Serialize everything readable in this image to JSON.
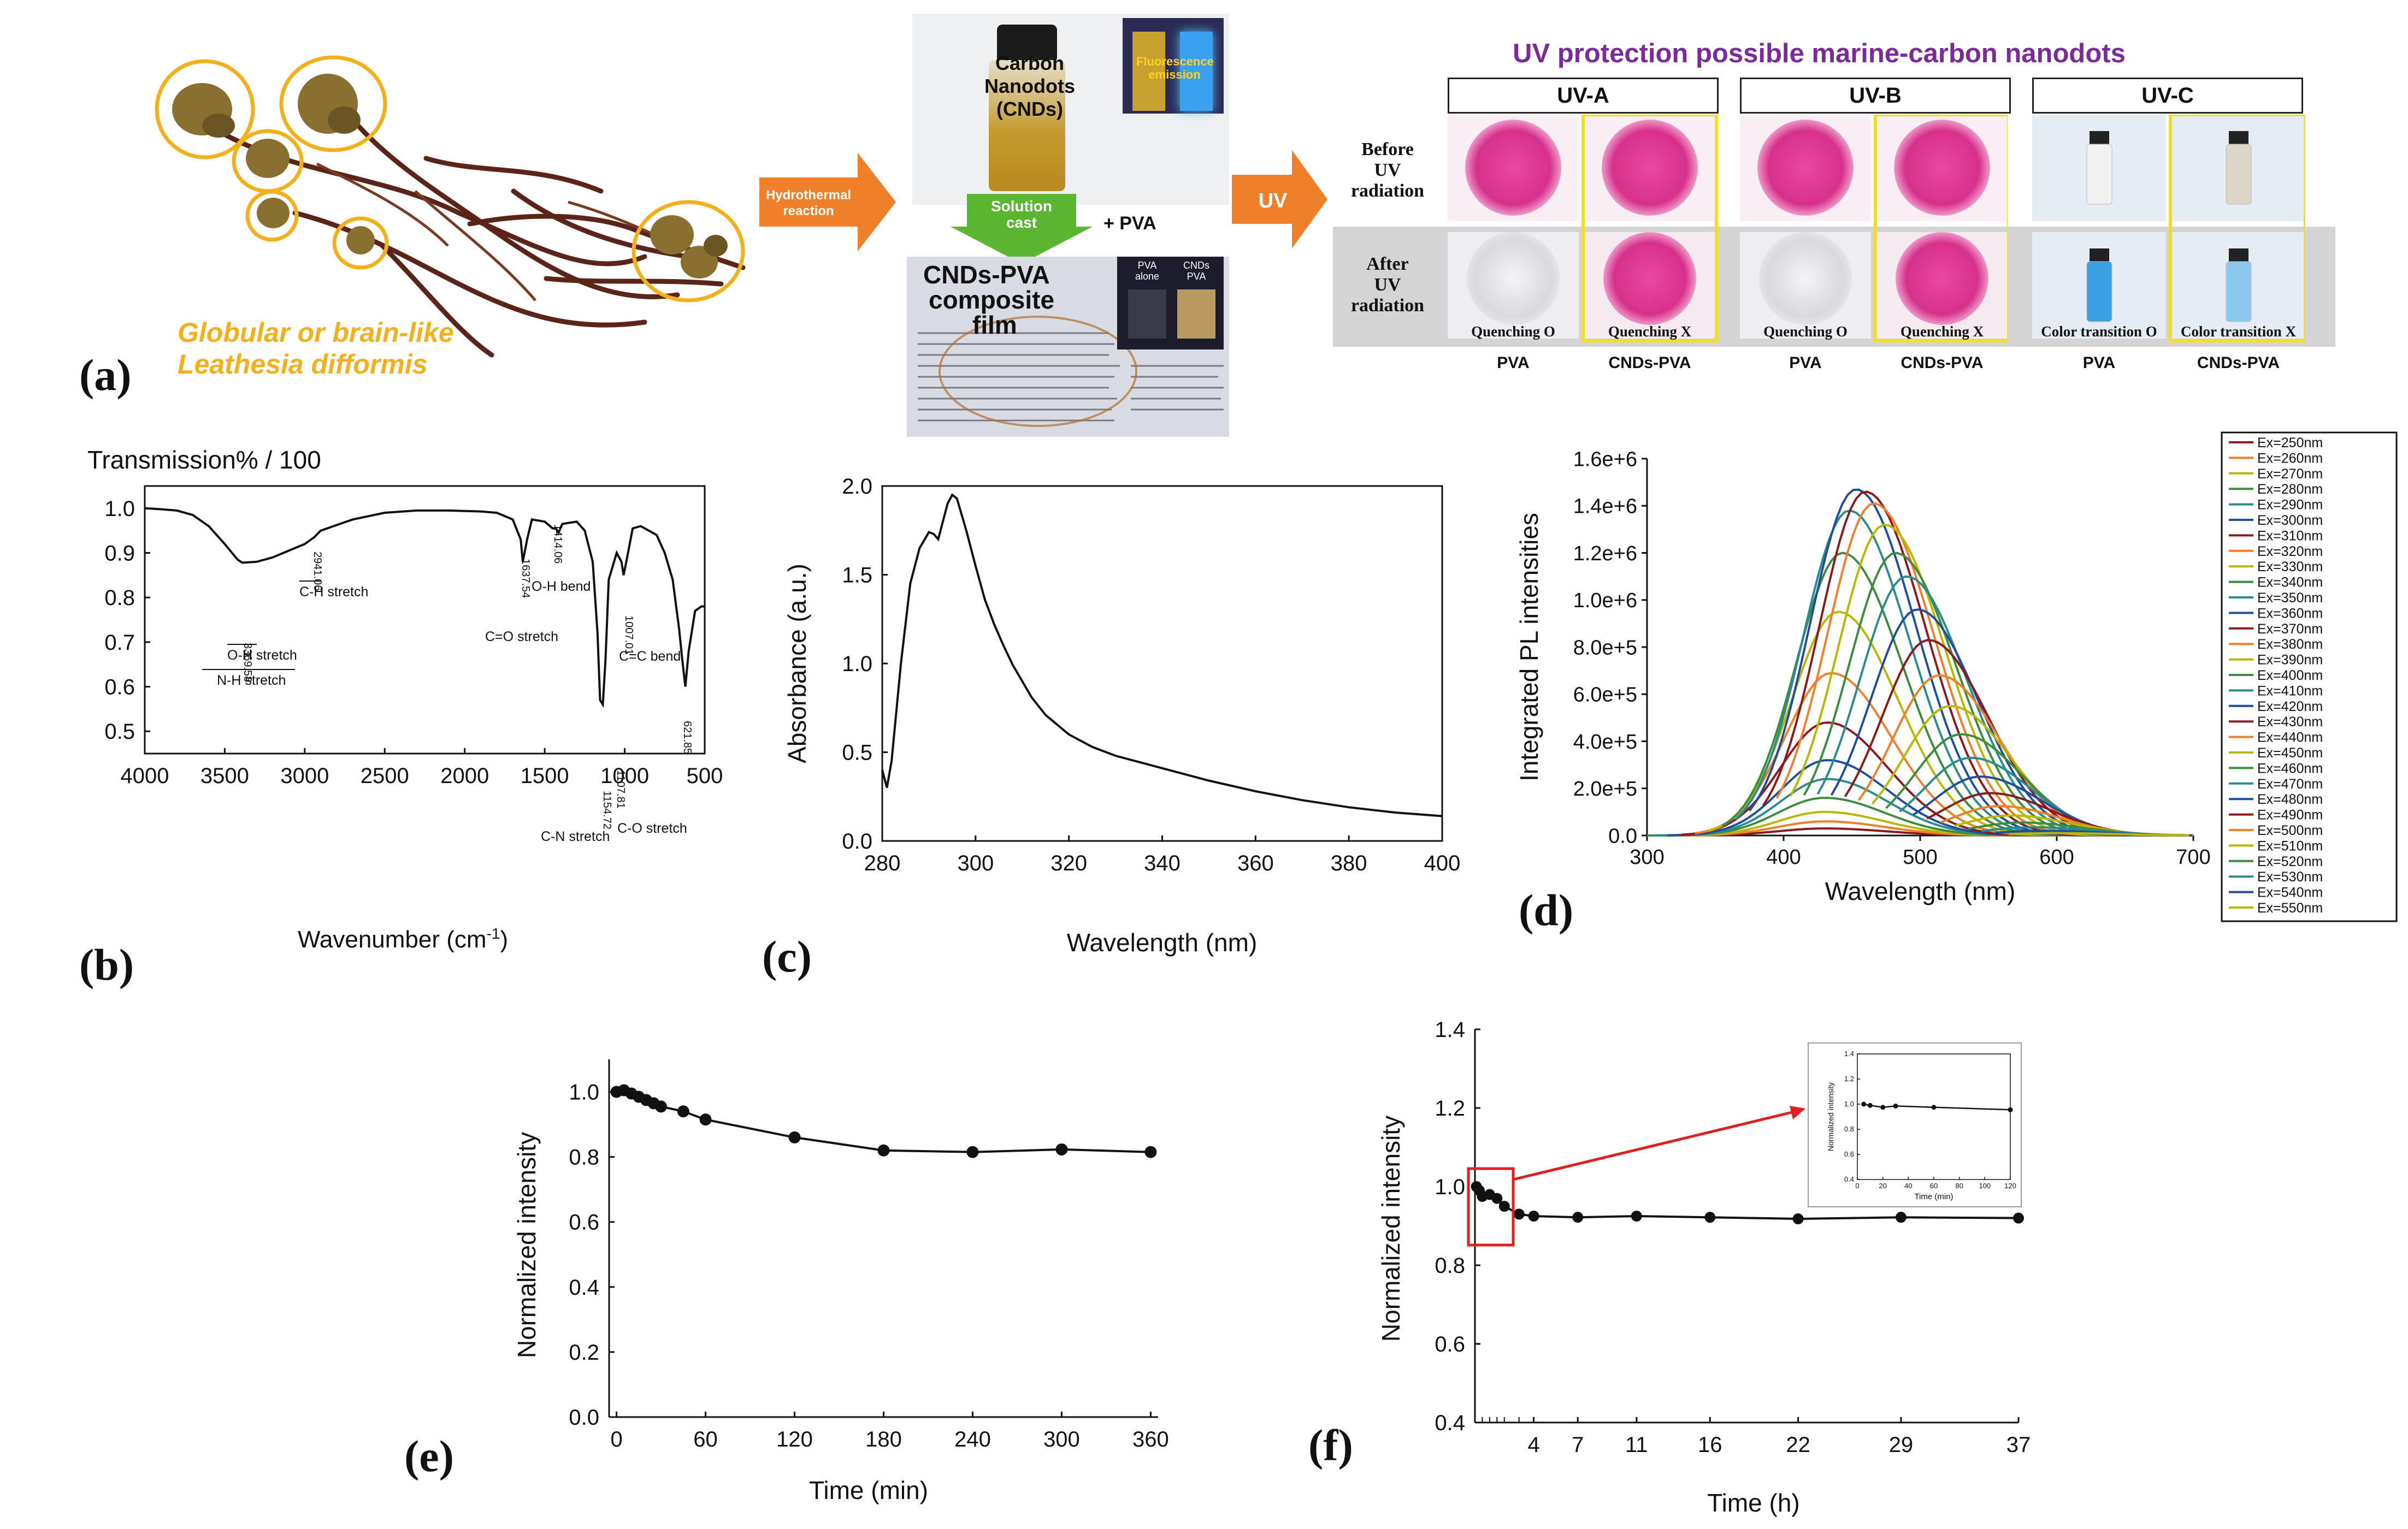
{
  "panel_a": {
    "letter": "(a)",
    "species_caption": [
      "Globular or brain-like",
      "Leathesia difformis"
    ],
    "arrow1": [
      "Hydrothermal",
      "reaction"
    ],
    "vial_label": [
      "Carbon",
      "Nanodots",
      "(CNDs)"
    ],
    "fluor_label": [
      "Fluorescence",
      "emission"
    ],
    "solution_cast": [
      "Solution",
      "cast"
    ],
    "plus_pva": "+ PVA",
    "film_label": [
      "CNDs-PVA",
      "composite",
      "film"
    ],
    "pva_alone": [
      "PVA",
      "alone"
    ],
    "cnds_pva_small": [
      "CNDs",
      "PVA"
    ],
    "arrow2": "UV",
    "title": "UV protection possible marine-carbon nanodots",
    "uv_heads": [
      "UV-A",
      "UV-B",
      "UV-C"
    ],
    "before_label": [
      "Before",
      "UV",
      "radiation"
    ],
    "after_label": [
      "After",
      "UV",
      "radiation"
    ],
    "captions": [
      "Quenching O",
      "Quenching X",
      "Quenching O",
      "Quenching X",
      "Color transition O",
      "Color transition X"
    ],
    "col_labels": [
      "PVA",
      "CNDs-PVA",
      "PVA",
      "CNDs-PVA",
      "PVA",
      "CNDs-PVA"
    ],
    "colors": {
      "yellow": "#f2b11b",
      "orange": "#f07f2a",
      "green": "#5cb531",
      "purple": "#7a2a9a",
      "pink": "#e0409a"
    }
  },
  "chart_data": [
    {
      "id": "b",
      "type": "line",
      "letter": "(b)",
      "title": "Transmission% / 100",
      "xlabel": "Wavenumber (cm",
      "xlabel_sup": "-1",
      "xlabel_end": ")",
      "ylabel": "",
      "xlim": [
        4000,
        500
      ],
      "ylim": [
        0.45,
        1.05
      ],
      "xticks": [
        4000,
        3500,
        3000,
        2500,
        2000,
        1500,
        1000,
        500
      ],
      "yticks": [
        0.5,
        0.6,
        0.7,
        0.8,
        0.9,
        1.0
      ],
      "ytick_labels": [
        "0.5",
        "0.6",
        "0.7",
        "0.8",
        "0.9",
        "1.0"
      ],
      "series": [
        {
          "name": "FTIR",
          "x": [
            4000,
            3900,
            3800,
            3700,
            3600,
            3500,
            3420,
            3390,
            3300,
            3200,
            3100,
            3000,
            2941,
            2900,
            2700,
            2500,
            2300,
            2100,
            1900,
            1800,
            1700,
            1650,
            1637,
            1610,
            1580,
            1500,
            1450,
            1430,
            1414,
            1390,
            1300,
            1250,
            1200,
            1170,
            1154,
            1137,
            1120,
            1100,
            1050,
            1020,
            1007,
            990,
            950,
            900,
            800,
            750,
            700,
            660,
            640,
            621,
            600,
            560,
            520,
            500
          ],
          "y": [
            1.0,
            0.998,
            0.995,
            0.985,
            0.96,
            0.92,
            0.885,
            0.878,
            0.88,
            0.89,
            0.905,
            0.92,
            0.935,
            0.95,
            0.975,
            0.99,
            0.995,
            0.995,
            0.993,
            0.99,
            0.975,
            0.93,
            0.88,
            0.93,
            0.975,
            0.97,
            0.955,
            0.955,
            0.945,
            0.965,
            0.97,
            0.95,
            0.88,
            0.72,
            0.57,
            0.56,
            0.66,
            0.84,
            0.9,
            0.88,
            0.85,
            0.88,
            0.955,
            0.96,
            0.94,
            0.9,
            0.84,
            0.73,
            0.66,
            0.6,
            0.68,
            0.77,
            0.78,
            0.78
          ]
        }
      ],
      "annotations": [
        "3369.58",
        "2941.06",
        "1637.54",
        "1414.06",
        "1154.72",
        "1107.81",
        "1007.01",
        "621.85"
      ],
      "band_labels": [
        "C-H stretch",
        "O-H stretch",
        "N-H stretch",
        "C=O stretch",
        "O-H bend",
        "C=C bend",
        "C-N stretch",
        "C-O stretch"
      ]
    },
    {
      "id": "c",
      "type": "line",
      "letter": "(c)",
      "xlabel": "Wavelength (nm)",
      "ylabel": "Absorbance (a.u.)",
      "xlim": [
        280,
        400
      ],
      "ylim": [
        0.0,
        2.0
      ],
      "xticks": [
        280,
        300,
        320,
        340,
        360,
        380,
        400
      ],
      "yticks": [
        0.0,
        0.5,
        1.0,
        1.5,
        2.0
      ],
      "ytick_labels": [
        "0.0",
        "0.5",
        "1.0",
        "1.5",
        "2.0"
      ],
      "series": [
        {
          "name": "Absorbance",
          "x": [
            280,
            281,
            282,
            284,
            286,
            288,
            290,
            291,
            292,
            293,
            294,
            295,
            296,
            298,
            300,
            302,
            304,
            306,
            308,
            310,
            312,
            315,
            320,
            325,
            330,
            340,
            350,
            360,
            370,
            380,
            390,
            400
          ],
          "y": [
            0.4,
            0.3,
            0.45,
            1.0,
            1.45,
            1.65,
            1.74,
            1.73,
            1.7,
            1.8,
            1.9,
            1.95,
            1.93,
            1.75,
            1.55,
            1.36,
            1.22,
            1.1,
            0.99,
            0.9,
            0.81,
            0.71,
            0.6,
            0.53,
            0.48,
            0.41,
            0.34,
            0.28,
            0.23,
            0.19,
            0.16,
            0.14
          ]
        }
      ]
    },
    {
      "id": "d",
      "type": "line",
      "letter": "(d)",
      "xlabel": "Wavelength (nm)",
      "ylabel": "Integrated PL intensities",
      "xlim": [
        300,
        700
      ],
      "ylim": [
        0,
        1600000
      ],
      "xticks": [
        300,
        400,
        500,
        600,
        700
      ],
      "yticks": [
        0,
        200000,
        400000,
        600000,
        800000,
        1000000,
        1200000,
        1400000,
        1600000
      ],
      "ytick_labels": [
        "0.0",
        "2.0e+5",
        "4.0e+5",
        "6.0e+5",
        "8.0e+5",
        "1.0e+6",
        "1.2e+6",
        "1.4e+6",
        "1.6e+6"
      ],
      "legend_position": "right",
      "series": [
        {
          "name": "Ex=250nm",
          "ex": 250,
          "peak": 430,
          "amp": 30000,
          "color": "#8b1a1a"
        },
        {
          "name": "Ex=260nm",
          "ex": 260,
          "peak": 430,
          "amp": 60000,
          "color": "#f07f2a"
        },
        {
          "name": "Ex=270nm",
          "ex": 270,
          "peak": 430,
          "amp": 100000,
          "color": "#b8b800"
        },
        {
          "name": "Ex=280nm",
          "ex": 280,
          "peak": 430,
          "amp": 160000,
          "color": "#3d8c3d"
        },
        {
          "name": "Ex=290nm",
          "ex": 290,
          "peak": 432,
          "amp": 240000,
          "color": "#2a8c8c"
        },
        {
          "name": "Ex=300nm",
          "ex": 300,
          "peak": 432,
          "amp": 320000,
          "color": "#1f4e9e"
        },
        {
          "name": "Ex=310nm",
          "ex": 310,
          "peak": 432,
          "amp": 480000,
          "color": "#8b1a1a"
        },
        {
          "name": "Ex=320nm",
          "ex": 320,
          "peak": 435,
          "amp": 690000,
          "color": "#f07f2a"
        },
        {
          "name": "Ex=330nm",
          "ex": 330,
          "peak": 440,
          "amp": 950000,
          "color": "#b8b800"
        },
        {
          "name": "Ex=340nm",
          "ex": 340,
          "peak": 443,
          "amp": 1200000,
          "color": "#3d8c3d"
        },
        {
          "name": "Ex=350nm",
          "ex": 350,
          "peak": 448,
          "amp": 1380000,
          "color": "#2a8c8c"
        },
        {
          "name": "Ex=360nm",
          "ex": 360,
          "peak": 453,
          "amp": 1470000,
          "color": "#1f4e9e"
        },
        {
          "name": "Ex=370nm",
          "ex": 370,
          "peak": 460,
          "amp": 1460000,
          "color": "#8b1a1a"
        },
        {
          "name": "Ex=380nm",
          "ex": 380,
          "peak": 466,
          "amp": 1410000,
          "color": "#f07f2a"
        },
        {
          "name": "Ex=390nm",
          "ex": 390,
          "peak": 474,
          "amp": 1320000,
          "color": "#b8b800"
        },
        {
          "name": "Ex=400nm",
          "ex": 400,
          "peak": 482,
          "amp": 1200000,
          "color": "#3d8c3d"
        },
        {
          "name": "Ex=410nm",
          "ex": 410,
          "peak": 490,
          "amp": 1100000,
          "color": "#2a8c8c"
        },
        {
          "name": "Ex=420nm",
          "ex": 420,
          "peak": 498,
          "amp": 960000,
          "color": "#1f4e9e"
        },
        {
          "name": "Ex=430nm",
          "ex": 430,
          "peak": 506,
          "amp": 830000,
          "color": "#8b1a1a"
        },
        {
          "name": "Ex=440nm",
          "ex": 440,
          "peak": 514,
          "amp": 680000,
          "color": "#f07f2a"
        },
        {
          "name": "Ex=450nm",
          "ex": 450,
          "peak": 522,
          "amp": 550000,
          "color": "#b8b800"
        },
        {
          "name": "Ex=460nm",
          "ex": 460,
          "peak": 530,
          "amp": 430000,
          "color": "#3d8c3d"
        },
        {
          "name": "Ex=470nm",
          "ex": 470,
          "peak": 537,
          "amp": 330000,
          "color": "#2a8c8c"
        },
        {
          "name": "Ex=480nm",
          "ex": 480,
          "peak": 544,
          "amp": 250000,
          "color": "#1f4e9e"
        },
        {
          "name": "Ex=490nm",
          "ex": 490,
          "peak": 551,
          "amp": 180000,
          "color": "#8b1a1a"
        },
        {
          "name": "Ex=500nm",
          "ex": 500,
          "peak": 558,
          "amp": 125000,
          "color": "#f07f2a"
        },
        {
          "name": "Ex=510nm",
          "ex": 510,
          "peak": 566,
          "amp": 85000,
          "color": "#b8b800"
        },
        {
          "name": "Ex=520nm",
          "ex": 520,
          "peak": 574,
          "amp": 55000,
          "color": "#3d8c3d"
        },
        {
          "name": "Ex=530nm",
          "ex": 530,
          "peak": 582,
          "amp": 35000,
          "color": "#2a8c8c"
        },
        {
          "name": "Ex=540nm",
          "ex": 540,
          "peak": 590,
          "amp": 20000,
          "color": "#1f4e9e"
        },
        {
          "name": "Ex=550nm",
          "ex": 550,
          "peak": 600,
          "amp": 10000,
          "color": "#b8b800"
        }
      ]
    },
    {
      "id": "e",
      "type": "line",
      "letter": "(e)",
      "xlabel": "Time (min)",
      "ylabel": "Normalized intensity",
      "xlim": [
        -5,
        365
      ],
      "ylim": [
        0.0,
        1.1
      ],
      "xticks": [
        0,
        60,
        120,
        180,
        240,
        300,
        360
      ],
      "yticks": [
        0.0,
        0.2,
        0.4,
        0.6,
        0.8,
        1.0
      ],
      "ytick_labels": [
        "0.0",
        "0.2",
        "0.4",
        "0.6",
        "0.8",
        "1.0"
      ],
      "series": [
        {
          "name": "Normalized intensity",
          "x": [
            0,
            5,
            10,
            15,
            20,
            25,
            30,
            45,
            60,
            120,
            180,
            240,
            300,
            360
          ],
          "y": [
            1.0,
            1.005,
            0.995,
            0.985,
            0.975,
            0.965,
            0.955,
            0.94,
            0.915,
            0.86,
            0.82,
            0.815,
            0.823,
            0.815
          ]
        }
      ]
    },
    {
      "id": "f",
      "type": "line",
      "letter": "(f)",
      "xlabel": "Time (h)",
      "ylabel": "Normalized intensity",
      "xlim": [
        0,
        37
      ],
      "ylim": [
        0.4,
        1.4
      ],
      "xticks": [
        4,
        7,
        11,
        16,
        22,
        29,
        37
      ],
      "yticks": [
        0.4,
        0.6,
        0.8,
        1.0,
        1.2,
        1.4
      ],
      "ytick_labels": [
        "0.4",
        "0.6",
        "0.8",
        "1.0",
        "1.2",
        "1.4"
      ],
      "series": [
        {
          "name": "Normalized intensity",
          "x": [
            0.1,
            0.3,
            0.5,
            1.0,
            1.5,
            2.0,
            3.0,
            4.0,
            7.0,
            11.0,
            16.0,
            22.0,
            29.0,
            37.0
          ],
          "y": [
            1.0,
            0.99,
            0.975,
            0.98,
            0.97,
            0.95,
            0.93,
            0.925,
            0.922,
            0.925,
            0.922,
            0.918,
            0.922,
            0.92
          ]
        }
      ],
      "inset": {
        "xlabel": "Time (min)",
        "ylabel": "Normalized intensity",
        "xlim": [
          0,
          120
        ],
        "ylim": [
          0.4,
          1.4
        ],
        "xticks": [
          0,
          20,
          40,
          60,
          80,
          100,
          120
        ],
        "yticks": [
          0.4,
          0.6,
          0.8,
          1.0,
          1.2,
          1.4
        ],
        "ytick_labels": [
          "0.4",
          "0.6",
          "0.8",
          "1.0",
          "1.2",
          "1.4"
        ],
        "x": [
          5,
          10,
          20,
          30,
          60,
          120
        ],
        "y": [
          1.0,
          0.99,
          0.975,
          0.985,
          0.975,
          0.955
        ]
      }
    }
  ]
}
